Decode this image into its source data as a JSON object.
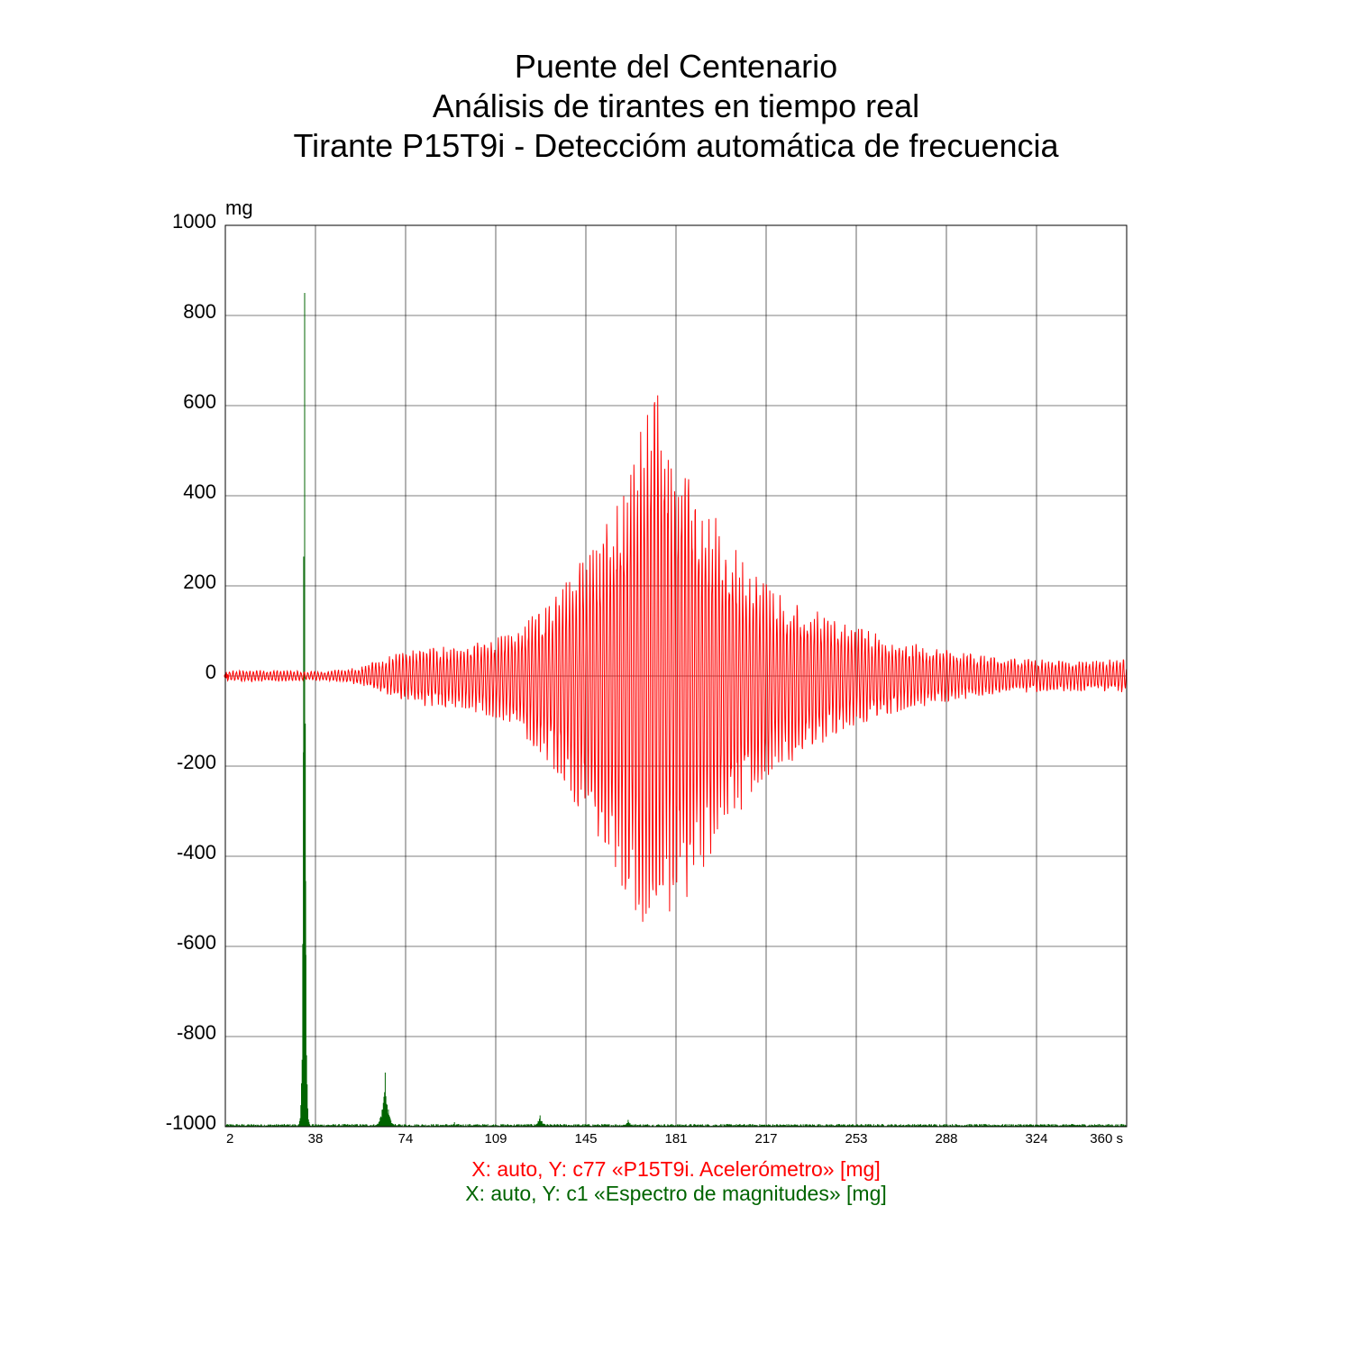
{
  "titles": [
    "Puente del Centenario",
    "Análisis de tirantes en tiempo real",
    "Tirante P15T9i - Deteccióm automática de frecuencia"
  ],
  "chart_data": {
    "type": "line",
    "title": "Puente del Centenario / Análisis de tirantes en tiempo real / Tirante P15T9i - Deteccióm automática de frecuencia",
    "ylabel": "mg",
    "xlabel": "s",
    "xlim": [
      2,
      360
    ],
    "ylim": [
      -1000,
      1000
    ],
    "grid": true,
    "x_ticks": [
      "2",
      "38",
      "74",
      "109",
      "145",
      "181",
      "217",
      "253",
      "288",
      "324",
      "360 s"
    ],
    "y_ticks": [
      "1000",
      "800",
      "600",
      "400",
      "200",
      "0",
      "-200",
      "-400",
      "-600",
      "-800",
      "-1000"
    ],
    "legend": [
      "X: auto,  Y: c77 «P15T9i. Acelerómetro» [mg]",
      "X: auto,  Y: c1 «Espectro de magnitudes» [mg]"
    ],
    "series": [
      {
        "name": "X: auto,  Y: c77 «P15T9i. Acelerómetro» [mg]",
        "color": "#ff0000",
        "kind": "oscillation",
        "cycle_period": 1.35,
        "envelope": {
          "x": [
            2,
            20,
            40,
            55,
            70,
            80,
            95,
            110,
            120,
            130,
            140,
            150,
            160,
            167,
            173,
            180,
            190,
            200,
            210,
            220,
            235,
            250,
            265,
            280,
            300,
            320,
            340,
            360
          ],
          "pos": [
            12,
            14,
            10,
            20,
            55,
            65,
            70,
            90,
            120,
            170,
            250,
            320,
            440,
            580,
            760,
            560,
            440,
            340,
            260,
            200,
            160,
            120,
            90,
            70,
            50,
            40,
            35,
            40
          ],
          "neg": [
            -12,
            -14,
            -10,
            -20,
            -55,
            -70,
            -75,
            -100,
            -140,
            -200,
            -290,
            -400,
            -500,
            -580,
            -600,
            -560,
            -480,
            -380,
            -300,
            -230,
            -170,
            -120,
            -90,
            -70,
            -50,
            -40,
            -35,
            -40
          ]
        }
      },
      {
        "name": "X: auto,  Y: c1 «Espectro de magnitudes» [mg]",
        "color": "#006400",
        "kind": "spectrum",
        "baseline": -1000,
        "peaks": [
          {
            "x": 33.5,
            "y": 850
          },
          {
            "x": 33.1,
            "y": 265
          },
          {
            "x": 33.9,
            "y": -455
          },
          {
            "x": 65.5,
            "y": -880
          },
          {
            "x": 93,
            "y": -990
          },
          {
            "x": 127,
            "y": -975
          },
          {
            "x": 162,
            "y": -985
          },
          {
            "x": 287,
            "y": -996
          },
          {
            "x": 318,
            "y": -996
          }
        ]
      }
    ]
  }
}
